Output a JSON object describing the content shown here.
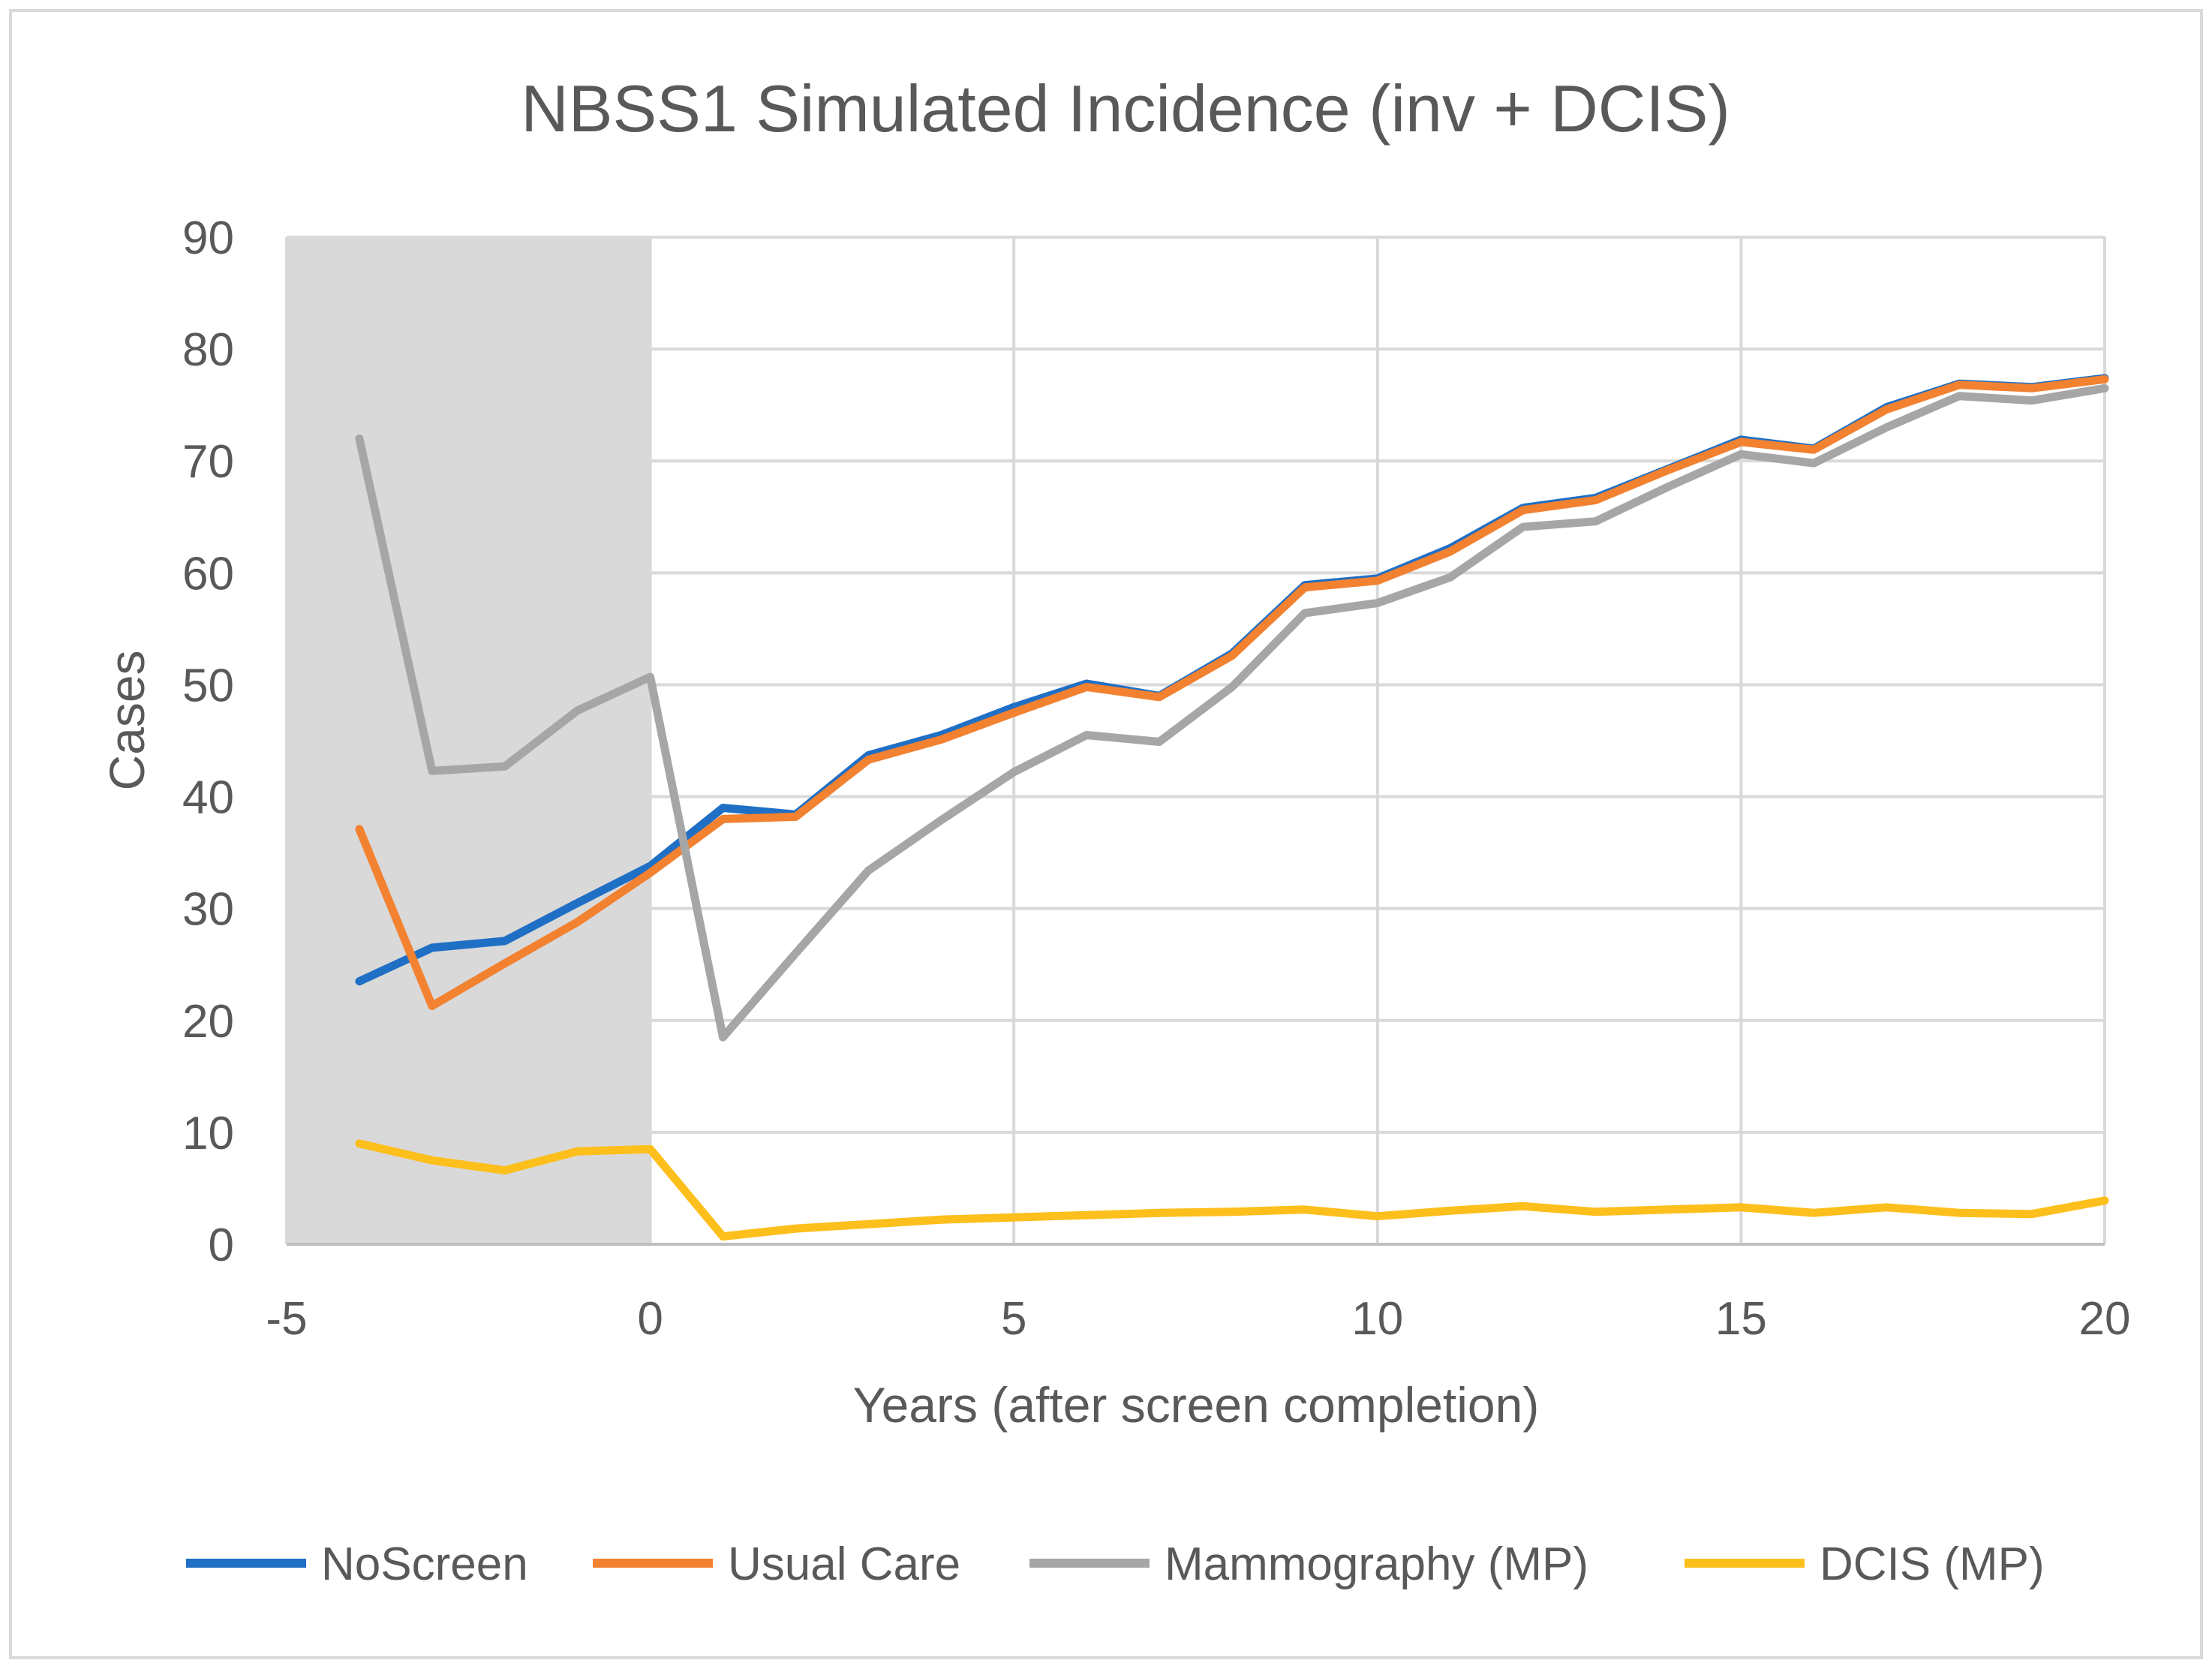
{
  "chart_data": {
    "type": "line",
    "title": "NBSS1 Simulated Incidence (inv + DCIS)",
    "xlabel": "Years (after screen completion)",
    "ylabel": "Cases",
    "xlim": [
      -5,
      20
    ],
    "ylim": [
      0,
      90
    ],
    "x_ticks": [
      -5,
      0,
      5,
      10,
      15,
      20
    ],
    "y_ticks": [
      0,
      10,
      20,
      30,
      40,
      50,
      60,
      70,
      80,
      90
    ],
    "x_tick_labels": [
      "-5",
      "0",
      "5",
      "10",
      "15",
      "20"
    ],
    "y_tick_labels": [
      "0",
      "10",
      "20",
      "30",
      "40",
      "50",
      "60",
      "70",
      "80",
      "90"
    ],
    "grid": true,
    "shaded_region": {
      "x_from": -5,
      "x_to": 0,
      "color": "#d9d9d9"
    },
    "legend_position": "bottom",
    "x": [
      -4,
      -3,
      -2,
      -1,
      0,
      1,
      2,
      3,
      4,
      5,
      6,
      7,
      8,
      9,
      10,
      11,
      12,
      13,
      14,
      15,
      16,
      17,
      18,
      19,
      20
    ],
    "series": [
      {
        "name": "NoScreen",
        "color": "#1f6fc5",
        "values": [
          23.5,
          26.5,
          27.1,
          30.5,
          33.8,
          39.0,
          38.4,
          43.7,
          45.5,
          48.0,
          50.1,
          49.0,
          52.8,
          58.9,
          59.5,
          62.2,
          65.8,
          66.7,
          69.3,
          71.9,
          71.1,
          74.8,
          76.9,
          76.6,
          77.4
        ]
      },
      {
        "name": "Usual Care",
        "color": "#f28130",
        "values": [
          37.1,
          21.3,
          25.1,
          28.8,
          33.2,
          38.0,
          38.2,
          43.3,
          45.1,
          47.5,
          49.8,
          48.9,
          52.6,
          58.7,
          59.3,
          61.9,
          65.6,
          66.5,
          69.2,
          71.7,
          71.0,
          74.6,
          76.8,
          76.5,
          77.3
        ]
      },
      {
        "name": "Mammography (MP)",
        "color": "#a6a6a6",
        "values": [
          72.0,
          42.3,
          42.7,
          47.7,
          50.7,
          18.5,
          26.0,
          33.4,
          37.9,
          42.2,
          45.5,
          44.9,
          49.8,
          56.4,
          57.3,
          59.6,
          64.1,
          64.6,
          67.7,
          70.6,
          69.8,
          73.0,
          75.8,
          75.4,
          76.5
        ]
      },
      {
        "name": "DCIS (MP)",
        "color": "#fcbf1c",
        "values": [
          9.0,
          7.5,
          6.6,
          8.3,
          8.5,
          0.7,
          1.4,
          1.8,
          2.2,
          2.4,
          2.6,
          2.8,
          2.9,
          3.1,
          2.5,
          3.0,
          3.4,
          2.9,
          3.1,
          3.3,
          2.8,
          3.3,
          2.8,
          2.7,
          3.9
        ]
      }
    ]
  }
}
